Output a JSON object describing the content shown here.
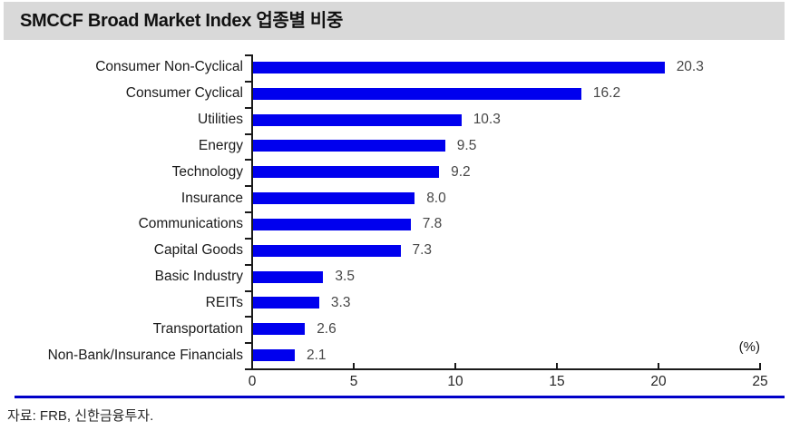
{
  "title_bar": {
    "title": "SMCCF Broad Market Index 업종별 비중"
  },
  "chart_data": {
    "type": "bar",
    "orientation": "horizontal",
    "title": "SMCCF Broad Market Index 업종별 비중",
    "categories": [
      "Consumer Non-Cyclical",
      "Consumer Cyclical",
      "Utilities",
      "Energy",
      "Technology",
      "Insurance",
      "Communications",
      "Capital Goods",
      "Basic Industry",
      "REITs",
      "Transportation",
      "Non-Bank/Insurance Financials"
    ],
    "values": [
      20.3,
      16.2,
      10.3,
      9.5,
      9.2,
      8.0,
      7.8,
      7.3,
      3.5,
      3.3,
      2.6,
      2.1
    ],
    "value_label_decimals": 1,
    "xlabel": "",
    "ylabel": "",
    "xlim": [
      0,
      25
    ],
    "xticks": [
      0,
      5,
      10,
      15,
      20,
      25
    ],
    "unit_label": "(%)",
    "bar_color": "#0000ee",
    "grid": false,
    "legend": "none"
  },
  "footer": {
    "source": "자료: FRB, 신한금융투자.",
    "rule_color": "#0000c8"
  }
}
